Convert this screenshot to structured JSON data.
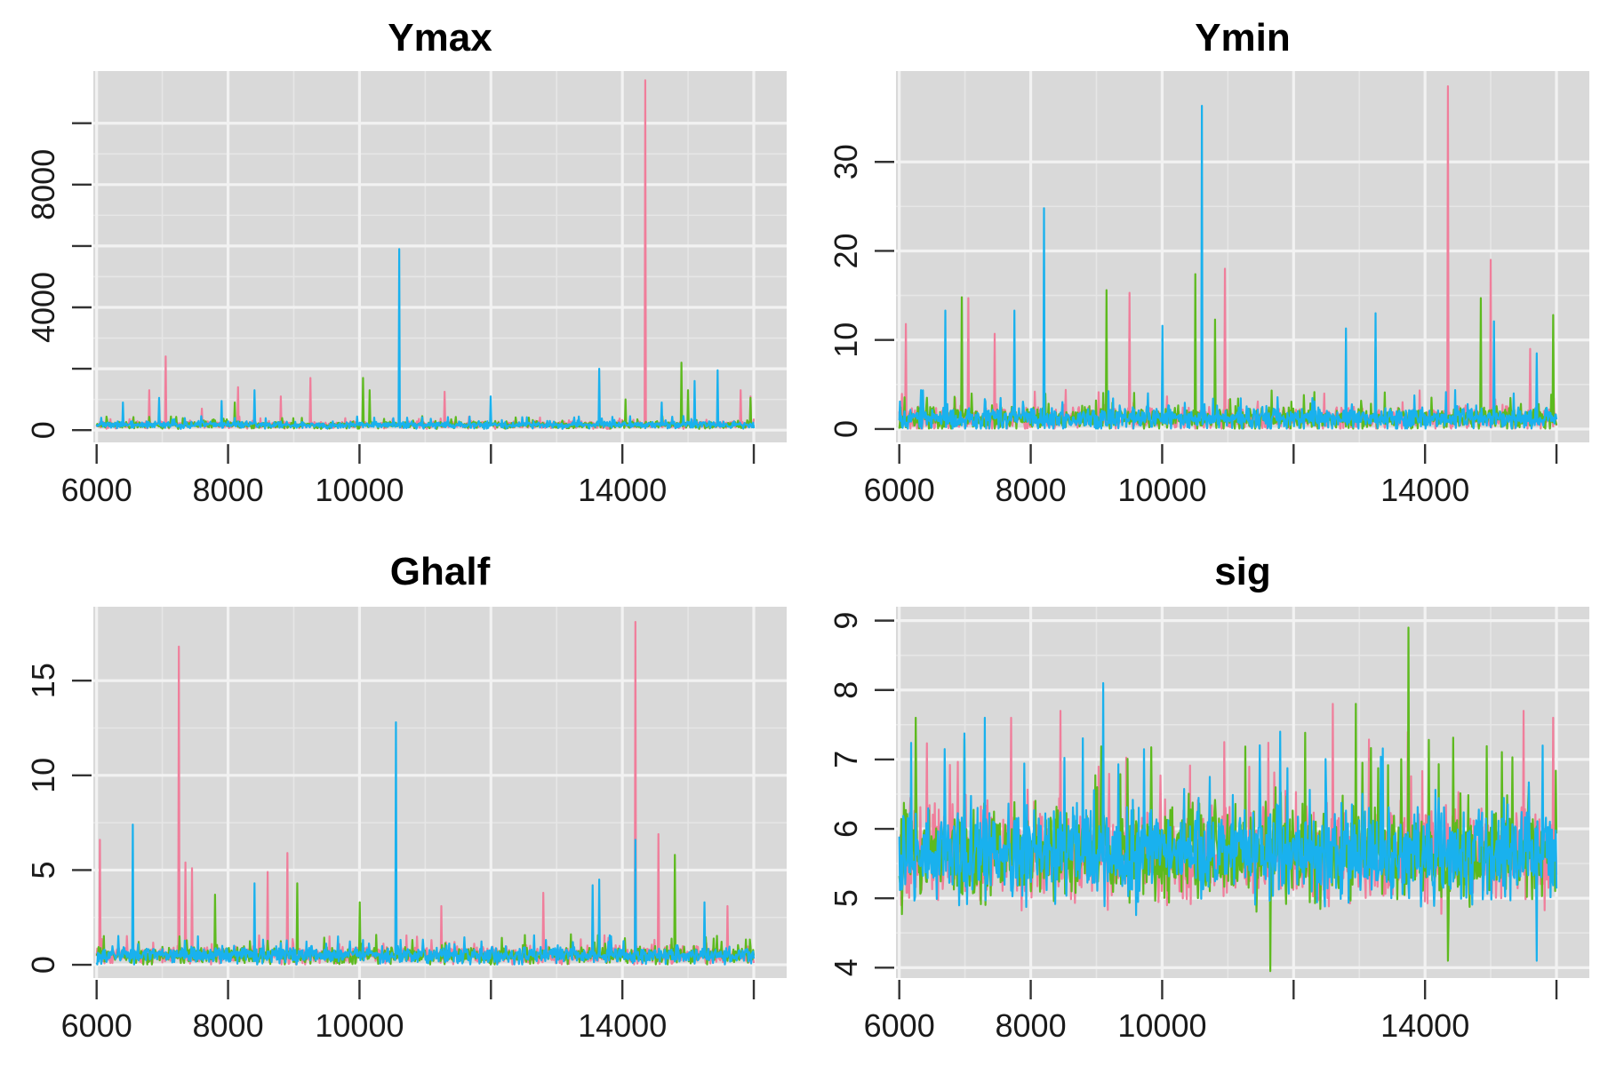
{
  "colors": {
    "panel_background": "#d9d9d9",
    "grid_major": "#f2f2f2",
    "grid_minor": "#e6e6e6",
    "chain_1": "#f07e9b",
    "chain_2": "#5dba1e",
    "chain_3": "#19b1ee"
  },
  "chart_data": [
    {
      "type": "line",
      "title": "Ymax",
      "xlabel": "",
      "ylabel": "",
      "xlim": [
        5950,
        16500
      ],
      "ylim": [
        -400,
        11700
      ],
      "x_ticks": [
        6000,
        8000,
        10000,
        12000,
        14000,
        16000
      ],
      "x_tick_labels": [
        "6000",
        "8000",
        "10000",
        "",
        "14000",
        ""
      ],
      "y_ticks": [
        0,
        2000,
        4000,
        6000,
        8000,
        10000
      ],
      "y_tick_labels": [
        "0",
        "",
        "4000",
        "",
        "8000",
        ""
      ],
      "grid": true,
      "x_range": [
        6000,
        16000
      ],
      "baseline": {
        "center": 170,
        "noise": 90,
        "min": 40
      },
      "series": [
        {
          "color": "chain_1",
          "seed": 11,
          "spikes": [
            [
              6800,
              1300
            ],
            [
              7050,
              2400
            ],
            [
              7600,
              700
            ],
            [
              8150,
              1400
            ],
            [
              8800,
              1100
            ],
            [
              9250,
              1700
            ],
            [
              11300,
              1250
            ],
            [
              14350,
              11400
            ],
            [
              15800,
              1300
            ],
            [
              15950,
              1100
            ]
          ]
        },
        {
          "color": "chain_2",
          "seed": 23,
          "spikes": [
            [
              8100,
              900
            ],
            [
              10050,
              1700
            ],
            [
              10150,
              1300
            ],
            [
              14050,
              1000
            ],
            [
              14900,
              2200
            ],
            [
              15000,
              1300
            ],
            [
              15950,
              1050
            ]
          ]
        },
        {
          "color": "chain_3",
          "seed": 37,
          "spikes": [
            [
              6400,
              900
            ],
            [
              6950,
              1050
            ],
            [
              7900,
              950
            ],
            [
              8400,
              1300
            ],
            [
              10600,
              5900
            ],
            [
              12000,
              1100
            ],
            [
              13650,
              2000
            ],
            [
              14600,
              900
            ],
            [
              15100,
              1600
            ],
            [
              15450,
              1950
            ]
          ]
        }
      ]
    },
    {
      "type": "line",
      "title": "Ymin",
      "xlabel": "",
      "ylabel": "",
      "xlim": [
        5950,
        16500
      ],
      "ylim": [
        -1.5,
        40.2
      ],
      "x_ticks": [
        6000,
        8000,
        10000,
        12000,
        14000,
        16000
      ],
      "x_tick_labels": [
        "6000",
        "8000",
        "10000",
        "",
        "14000",
        ""
      ],
      "y_ticks": [
        0,
        10,
        20,
        30
      ],
      "y_tick_labels": [
        "0",
        "10",
        "20",
        "30"
      ],
      "grid": true,
      "x_range": [
        6000,
        16000
      ],
      "baseline": {
        "center": 1.2,
        "noise": 1.0,
        "min": 0.05
      },
      "series": [
        {
          "color": "chain_1",
          "seed": 41,
          "spikes": [
            [
              6100,
              11.8
            ],
            [
              7050,
              14.7
            ],
            [
              7450,
              10.7
            ],
            [
              9500,
              15.3
            ],
            [
              10950,
              18.0
            ],
            [
              14350,
              38.5
            ],
            [
              15000,
              19.0
            ],
            [
              15600,
              9.0
            ]
          ]
        },
        {
          "color": "chain_2",
          "seed": 53,
          "spikes": [
            [
              6950,
              14.8
            ],
            [
              9150,
              15.6
            ],
            [
              10500,
              17.4
            ],
            [
              10800,
              12.3
            ],
            [
              13250,
              9.2
            ],
            [
              14850,
              14.7
            ],
            [
              15950,
              12.8
            ]
          ]
        },
        {
          "color": "chain_3",
          "seed": 67,
          "spikes": [
            [
              6700,
              13.3
            ],
            [
              7750,
              13.3
            ],
            [
              8200,
              24.8
            ],
            [
              10000,
              11.6
            ],
            [
              10600,
              36.3
            ],
            [
              12800,
              11.3
            ],
            [
              13250,
              13.0
            ],
            [
              15050,
              12.1
            ],
            [
              15700,
              8.5
            ]
          ]
        }
      ]
    },
    {
      "type": "line",
      "title": "Ghalf",
      "xlabel": "",
      "ylabel": "",
      "xlim": [
        5950,
        16500
      ],
      "ylim": [
        -0.7,
        18.9
      ],
      "x_ticks": [
        6000,
        8000,
        10000,
        12000,
        14000,
        16000
      ],
      "x_tick_labels": [
        "6000",
        "8000",
        "10000",
        "",
        "14000",
        ""
      ],
      "y_ticks": [
        0,
        5,
        10,
        15
      ],
      "y_tick_labels": [
        "0",
        "5",
        "10",
        "15"
      ],
      "grid": true,
      "x_range": [
        6000,
        16000
      ],
      "baseline": {
        "center": 0.5,
        "noise": 0.35,
        "min": 0.02
      },
      "series": [
        {
          "color": "chain_1",
          "seed": 71,
          "spikes": [
            [
              6050,
              6.6
            ],
            [
              7250,
              16.8
            ],
            [
              7350,
              5.4
            ],
            [
              7450,
              5.1
            ],
            [
              8600,
              4.9
            ],
            [
              8900,
              5.9
            ],
            [
              10550,
              6.9
            ],
            [
              11250,
              3.1
            ],
            [
              12800,
              3.8
            ],
            [
              14200,
              18.1
            ],
            [
              14550,
              6.9
            ],
            [
              15600,
              3.1
            ]
          ]
        },
        {
          "color": "chain_2",
          "seed": 83,
          "spikes": [
            [
              7800,
              3.7
            ],
            [
              9050,
              4.3
            ],
            [
              10000,
              3.3
            ],
            [
              14800,
              5.8
            ]
          ]
        },
        {
          "color": "chain_3",
          "seed": 97,
          "spikes": [
            [
              6550,
              7.4
            ],
            [
              8400,
              4.3
            ],
            [
              10550,
              12.8
            ],
            [
              13550,
              4.2
            ],
            [
              13650,
              4.5
            ],
            [
              14200,
              6.6
            ],
            [
              15250,
              3.3
            ]
          ]
        }
      ]
    },
    {
      "type": "line",
      "title": "sig",
      "xlabel": "",
      "ylabel": "",
      "xlim": [
        5950,
        16500
      ],
      "ylim": [
        3.85,
        9.2
      ],
      "x_ticks": [
        6000,
        8000,
        10000,
        12000,
        14000,
        16000
      ],
      "x_tick_labels": [
        "6000",
        "8000",
        "10000",
        "",
        "14000",
        ""
      ],
      "y_ticks": [
        4,
        5,
        6,
        7,
        8,
        9
      ],
      "y_tick_labels": [
        "4",
        "5",
        "6",
        "7",
        "8",
        "9"
      ],
      "grid": true,
      "x_range": [
        6000,
        16000
      ],
      "baseline": {
        "center": 5.65,
        "noise": 0.55,
        "min": 4.0
      },
      "series": [
        {
          "color": "chain_1",
          "seed": 101,
          "spikes": [
            [
              7700,
              7.6
            ],
            [
              8450,
              7.7
            ],
            [
              12600,
              7.8
            ],
            [
              15500,
              7.7
            ],
            [
              15950,
              7.6
            ]
          ]
        },
        {
          "color": "chain_2",
          "seed": 113,
          "spikes": [
            [
              6250,
              7.6
            ],
            [
              11650,
              3.95
            ],
            [
              12950,
              7.8
            ],
            [
              13750,
              8.9
            ],
            [
              14350,
              4.1
            ]
          ]
        },
        {
          "color": "chain_3",
          "seed": 127,
          "spikes": [
            [
              9100,
              8.1
            ],
            [
              7300,
              7.6
            ],
            [
              15700,
              4.1
            ],
            [
              11800,
              7.4
            ]
          ]
        }
      ]
    }
  ]
}
